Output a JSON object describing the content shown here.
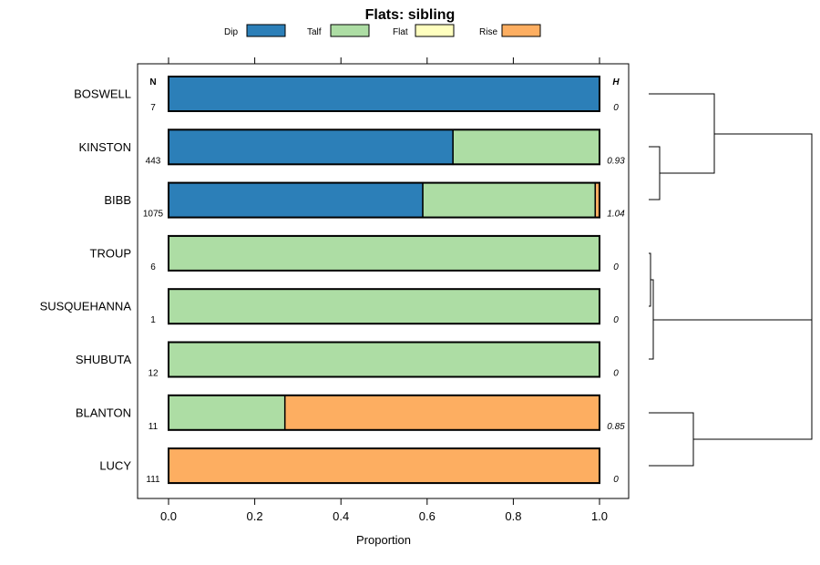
{
  "chart_data": {
    "type": "bar",
    "stacked": true,
    "orientation": "horizontal",
    "title": "Flats: sibling",
    "xlabel": "Proportion",
    "ylabel": "",
    "xlim": [
      0.0,
      1.0
    ],
    "xticks": [
      "0.0",
      "0.2",
      "0.4",
      "0.6",
      "0.8",
      "1.0"
    ],
    "xtick_values": [
      0,
      0.2,
      0.4,
      0.6,
      0.8,
      1.0
    ],
    "legend": [
      {
        "name": "Dip",
        "color": "#2c7fb8"
      },
      {
        "name": "Talf",
        "color": "#addda4"
      },
      {
        "name": "Flat",
        "color": "#ffffbf"
      },
      {
        "name": "Rise",
        "color": "#fdae61"
      }
    ],
    "n_header": "N",
    "h_header": "H",
    "categories": [
      "BOSWELL",
      "KINSTON",
      "BIBB",
      "TROUP",
      "SUSQUEHANNA",
      "SHUBUTA",
      "BLANTON",
      "LUCY"
    ],
    "n_values": [
      "7",
      "443",
      "1075",
      "6",
      "1",
      "12",
      "11",
      "111"
    ],
    "h_values": [
      "0",
      "0.93",
      "1.04",
      "0",
      "0",
      "0",
      "0.85",
      "0"
    ],
    "series": [
      {
        "name": "Dip",
        "values": [
          1.0,
          0.66,
          0.59,
          0,
          0,
          0,
          0,
          0
        ]
      },
      {
        "name": "Talf",
        "values": [
          0,
          0.34,
          0.4,
          1.0,
          1.0,
          1.0,
          0.27,
          0
        ]
      },
      {
        "name": "Flat",
        "values": [
          0,
          0,
          0,
          0,
          0,
          0,
          0,
          0
        ]
      },
      {
        "name": "Rise",
        "values": [
          0,
          0,
          0.01,
          0,
          0,
          0,
          0.73,
          1.0
        ]
      }
    ]
  }
}
